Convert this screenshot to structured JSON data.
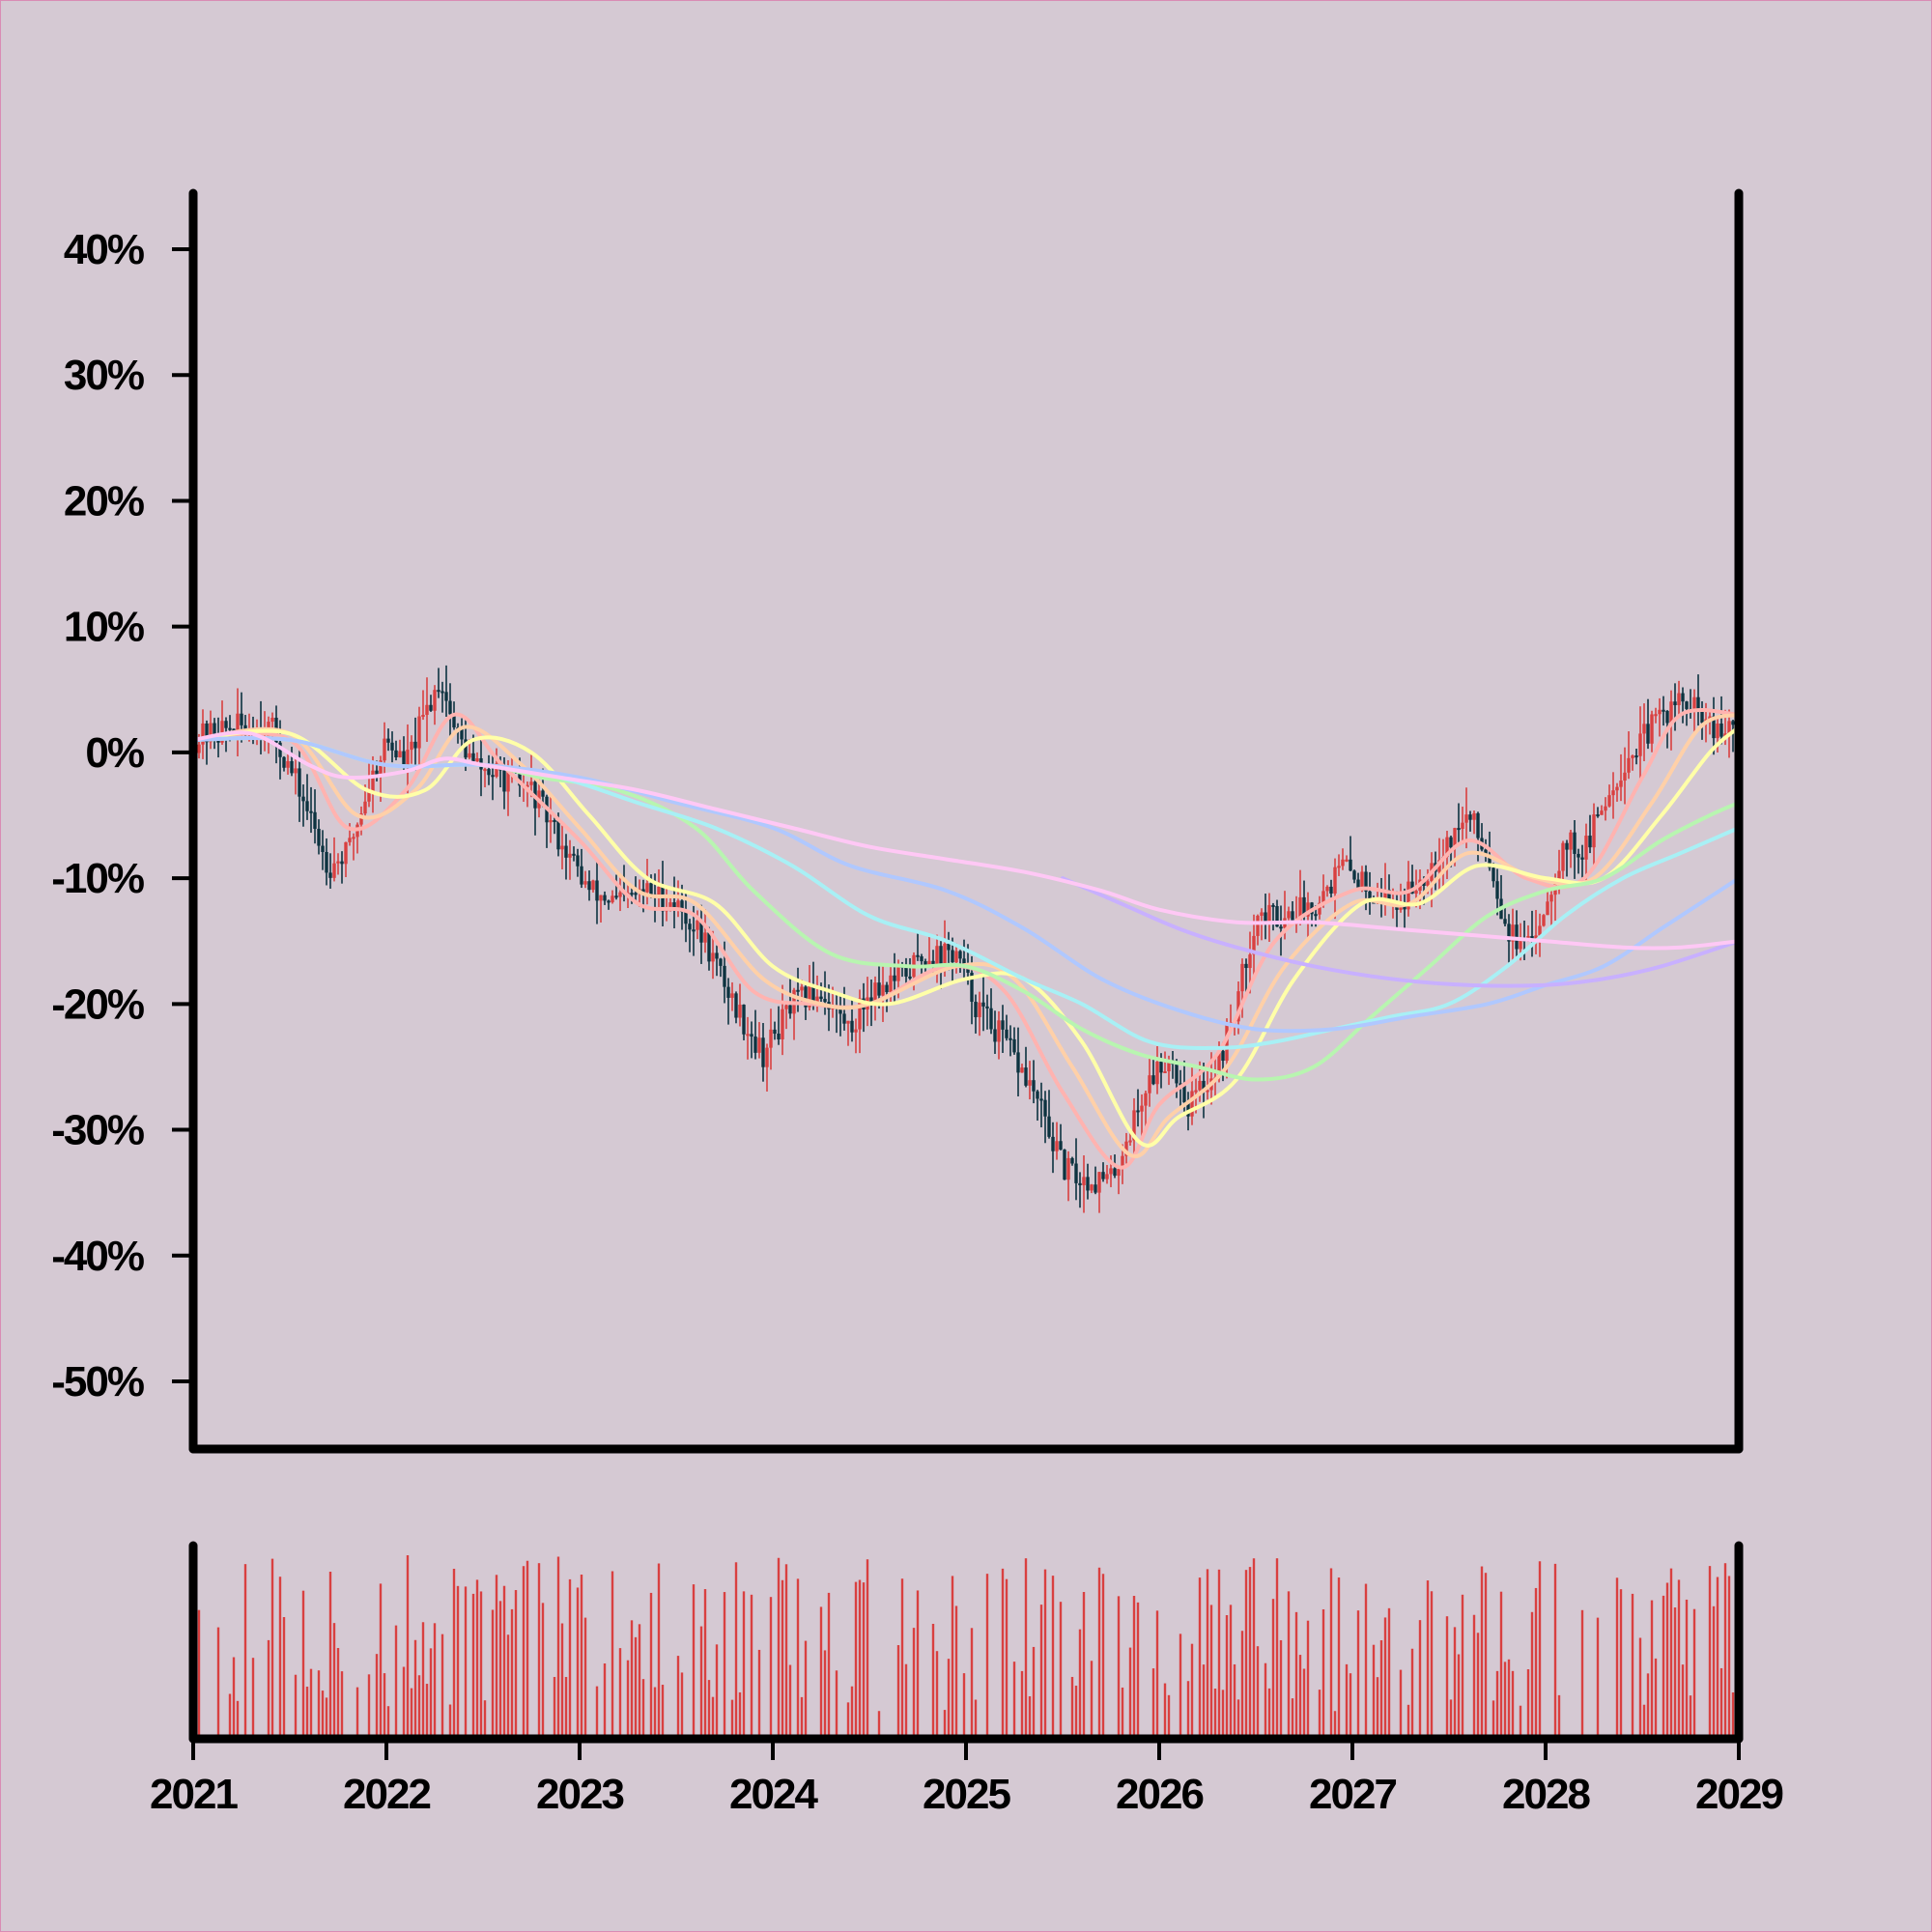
{
  "chart_data": {
    "type": "candlestick",
    "title": "",
    "xlabel": "",
    "ylabel": "",
    "x_range": [
      "2021",
      "2029"
    ],
    "y_range_percent": [
      -55,
      45
    ],
    "y_ticks": [
      "40%",
      "30%",
      "20%",
      "10%",
      "0%",
      "-10%",
      "-20%",
      "-30%",
      "-40%",
      "-50%"
    ],
    "y_tick_values": [
      40,
      30,
      20,
      10,
      0,
      -10,
      -20,
      -30,
      -40,
      -50
    ],
    "x_ticks": [
      "2021",
      "2022",
      "2023",
      "2024",
      "2025",
      "2026",
      "2027",
      "2028",
      "2029"
    ],
    "price_path": {
      "description_units": "percent change, approximate weekly closes sampled at year fractions",
      "points": [
        [
          2021.0,
          1
        ],
        [
          2021.2,
          2
        ],
        [
          2021.4,
          2
        ],
        [
          2021.55,
          -3
        ],
        [
          2021.7,
          -9
        ],
        [
          2021.8,
          -8
        ],
        [
          2021.9,
          -3
        ],
        [
          2022.0,
          1
        ],
        [
          2022.1,
          -1
        ],
        [
          2022.2,
          3
        ],
        [
          2022.28,
          6
        ],
        [
          2022.35,
          2
        ],
        [
          2022.45,
          -1
        ],
        [
          2022.6,
          -2
        ],
        [
          2022.75,
          -3
        ],
        [
          2022.9,
          -7
        ],
        [
          2023.05,
          -11
        ],
        [
          2023.2,
          -12
        ],
        [
          2023.35,
          -11
        ],
        [
          2023.5,
          -12
        ],
        [
          2023.65,
          -15
        ],
        [
          2023.8,
          -20
        ],
        [
          2023.95,
          -24
        ],
        [
          2024.1,
          -20
        ],
        [
          2024.25,
          -19
        ],
        [
          2024.4,
          -22
        ],
        [
          2024.5,
          -19
        ],
        [
          2024.65,
          -18
        ],
        [
          2024.8,
          -16
        ],
        [
          2024.95,
          -16
        ],
        [
          2025.05,
          -20
        ],
        [
          2025.2,
          -23
        ],
        [
          2025.35,
          -27
        ],
        [
          2025.5,
          -33
        ],
        [
          2025.6,
          -34
        ],
        [
          2025.75,
          -34
        ],
        [
          2025.85,
          -30
        ],
        [
          2025.95,
          -26
        ],
        [
          2026.05,
          -24
        ],
        [
          2026.15,
          -28
        ],
        [
          2026.3,
          -25
        ],
        [
          2026.4,
          -20
        ],
        [
          2026.5,
          -13
        ],
        [
          2026.65,
          -13
        ],
        [
          2026.8,
          -12
        ],
        [
          2026.95,
          -9
        ],
        [
          2027.1,
          -11
        ],
        [
          2027.25,
          -12
        ],
        [
          2027.35,
          -10
        ],
        [
          2027.5,
          -7
        ],
        [
          2027.6,
          -5
        ],
        [
          2027.7,
          -8
        ],
        [
          2027.8,
          -14
        ],
        [
          2027.9,
          -16
        ],
        [
          2028.0,
          -12
        ],
        [
          2028.1,
          -7
        ],
        [
          2028.2,
          -8
        ],
        [
          2028.3,
          -4
        ],
        [
          2028.4,
          -1
        ],
        [
          2028.5,
          1
        ],
        [
          2028.6,
          3
        ],
        [
          2028.7,
          4
        ],
        [
          2028.8,
          3
        ],
        [
          2028.9,
          1
        ],
        [
          2029.0,
          3
        ]
      ]
    },
    "moving_averages": [
      {
        "color": "#ffb3b0",
        "points": [
          [
            2021,
            1
          ],
          [
            2021.5,
            1
          ],
          [
            2021.8,
            -6
          ],
          [
            2022.1,
            -3
          ],
          [
            2022.35,
            3
          ],
          [
            2022.6,
            -1
          ],
          [
            2023.0,
            -7
          ],
          [
            2023.3,
            -12
          ],
          [
            2023.6,
            -13
          ],
          [
            2023.9,
            -19
          ],
          [
            2024.2,
            -20
          ],
          [
            2024.5,
            -20
          ],
          [
            2024.9,
            -17
          ],
          [
            2025.2,
            -19
          ],
          [
            2025.5,
            -27
          ],
          [
            2025.8,
            -33
          ],
          [
            2026.0,
            -28
          ],
          [
            2026.3,
            -24
          ],
          [
            2026.6,
            -15
          ],
          [
            2027.0,
            -11
          ],
          [
            2027.3,
            -11
          ],
          [
            2027.6,
            -7
          ],
          [
            2027.9,
            -10
          ],
          [
            2028.2,
            -10
          ],
          [
            2028.5,
            -2
          ],
          [
            2028.7,
            3
          ],
          [
            2029.0,
            3
          ]
        ]
      },
      {
        "color": "#ffd0a8",
        "points": [
          [
            2021,
            1
          ],
          [
            2021.5,
            1.5
          ],
          [
            2021.85,
            -5
          ],
          [
            2022.15,
            -3
          ],
          [
            2022.4,
            2
          ],
          [
            2022.7,
            -1
          ],
          [
            2023.0,
            -6
          ],
          [
            2023.3,
            -11
          ],
          [
            2023.6,
            -12
          ],
          [
            2023.95,
            -18
          ],
          [
            2024.25,
            -20
          ],
          [
            2024.5,
            -20
          ],
          [
            2024.95,
            -17
          ],
          [
            2025.25,
            -18
          ],
          [
            2025.55,
            -25
          ],
          [
            2025.85,
            -32
          ],
          [
            2026.05,
            -29
          ],
          [
            2026.35,
            -25
          ],
          [
            2026.65,
            -17
          ],
          [
            2027.0,
            -12
          ],
          [
            2027.3,
            -12
          ],
          [
            2027.6,
            -8
          ],
          [
            2027.95,
            -10
          ],
          [
            2028.25,
            -10
          ],
          [
            2028.55,
            -4
          ],
          [
            2028.8,
            2
          ],
          [
            2029.0,
            3
          ]
        ]
      },
      {
        "color": "#ffffa8",
        "points": [
          [
            2021,
            1
          ],
          [
            2021.5,
            1.5
          ],
          [
            2021.9,
            -3
          ],
          [
            2022.2,
            -3
          ],
          [
            2022.45,
            1
          ],
          [
            2022.75,
            0
          ],
          [
            2023.05,
            -5
          ],
          [
            2023.35,
            -10
          ],
          [
            2023.7,
            -12
          ],
          [
            2024.0,
            -17
          ],
          [
            2024.3,
            -19
          ],
          [
            2024.6,
            -20
          ],
          [
            2025.0,
            -18
          ],
          [
            2025.3,
            -18
          ],
          [
            2025.6,
            -23
          ],
          [
            2025.9,
            -31
          ],
          [
            2026.1,
            -29
          ],
          [
            2026.4,
            -26
          ],
          [
            2026.7,
            -18
          ],
          [
            2027.05,
            -12
          ],
          [
            2027.35,
            -12
          ],
          [
            2027.65,
            -9
          ],
          [
            2028.0,
            -10
          ],
          [
            2028.3,
            -10
          ],
          [
            2028.6,
            -5
          ],
          [
            2028.85,
            0
          ],
          [
            2029.0,
            2
          ]
        ]
      },
      {
        "color": "#b8f5b0",
        "points": [
          [
            2021,
            1
          ],
          [
            2021.5,
            1
          ],
          [
            2022.0,
            -1
          ],
          [
            2022.5,
            -1
          ],
          [
            2022.8,
            -2
          ],
          [
            2023.2,
            -3
          ],
          [
            2023.6,
            -6
          ],
          [
            2023.9,
            -11
          ],
          [
            2024.3,
            -16
          ],
          [
            2024.7,
            -17
          ],
          [
            2025.0,
            -17
          ],
          [
            2025.3,
            -19
          ],
          [
            2025.6,
            -22
          ],
          [
            2025.9,
            -24
          ],
          [
            2026.2,
            -25
          ],
          [
            2026.5,
            -26
          ],
          [
            2026.8,
            -25
          ],
          [
            2027.1,
            -21
          ],
          [
            2027.4,
            -17
          ],
          [
            2027.7,
            -13
          ],
          [
            2028.0,
            -11
          ],
          [
            2028.3,
            -10
          ],
          [
            2028.6,
            -7
          ],
          [
            2028.85,
            -5
          ],
          [
            2029.0,
            -4
          ]
        ]
      },
      {
        "color": "#a8f0f5",
        "points": [
          [
            2021,
            1
          ],
          [
            2021.5,
            1
          ],
          [
            2022.0,
            -1
          ],
          [
            2022.5,
            -1
          ],
          [
            2022.9,
            -2
          ],
          [
            2023.3,
            -4
          ],
          [
            2023.7,
            -6
          ],
          [
            2024.1,
            -9
          ],
          [
            2024.5,
            -13
          ],
          [
            2024.9,
            -15
          ],
          [
            2025.3,
            -18
          ],
          [
            2025.6,
            -20
          ],
          [
            2025.95,
            -23
          ],
          [
            2026.3,
            -23.5
          ],
          [
            2026.6,
            -23
          ],
          [
            2026.9,
            -22
          ],
          [
            2027.2,
            -21
          ],
          [
            2027.5,
            -20
          ],
          [
            2027.8,
            -17
          ],
          [
            2028.1,
            -13
          ],
          [
            2028.4,
            -10
          ],
          [
            2028.7,
            -8
          ],
          [
            2029.0,
            -6
          ]
        ]
      },
      {
        "color": "#b0c8ff",
        "points": [
          [
            2021,
            1
          ],
          [
            2021.5,
            1
          ],
          [
            2022.0,
            -1
          ],
          [
            2022.5,
            -1
          ],
          [
            2023.0,
            -2
          ],
          [
            2023.5,
            -4
          ],
          [
            2024.0,
            -6
          ],
          [
            2024.4,
            -9
          ],
          [
            2024.9,
            -11
          ],
          [
            2025.3,
            -14
          ],
          [
            2025.7,
            -18
          ],
          [
            2026.1,
            -20.5
          ],
          [
            2026.5,
            -22
          ],
          [
            2026.9,
            -22
          ],
          [
            2027.3,
            -21
          ],
          [
            2027.7,
            -20
          ],
          [
            2028.0,
            -18.5
          ],
          [
            2028.3,
            -17
          ],
          [
            2028.6,
            -14
          ],
          [
            2028.8,
            -12
          ],
          [
            2029.0,
            -10
          ]
        ]
      },
      {
        "color": "#c8b0ff",
        "points": [
          [
            2025.5,
            -10
          ],
          [
            2025.8,
            -12
          ],
          [
            2026.1,
            -14
          ],
          [
            2026.4,
            -15.5
          ],
          [
            2026.8,
            -17
          ],
          [
            2027.2,
            -18
          ],
          [
            2027.6,
            -18.5
          ],
          [
            2028.0,
            -18.5
          ],
          [
            2028.3,
            -18
          ],
          [
            2028.6,
            -17
          ],
          [
            2029.0,
            -15
          ]
        ]
      },
      {
        "color": "#ffc8f5",
        "points": [
          [
            2021,
            1
          ],
          [
            2021.3,
            1.5
          ],
          [
            2021.6,
            -1
          ],
          [
            2021.8,
            -2
          ],
          [
            2022.1,
            -1.5
          ],
          [
            2022.3,
            -0.5
          ],
          [
            2022.5,
            -1
          ],
          [
            2022.9,
            -2
          ],
          [
            2023.3,
            -3
          ],
          [
            2023.7,
            -4.5
          ],
          [
            2024.1,
            -6
          ],
          [
            2024.5,
            -7.5
          ],
          [
            2024.9,
            -8.5
          ],
          [
            2025.3,
            -9.5
          ],
          [
            2025.7,
            -11
          ],
          [
            2026.0,
            -12.5
          ],
          [
            2026.4,
            -13.5
          ],
          [
            2026.8,
            -13.5
          ],
          [
            2027.2,
            -14
          ],
          [
            2027.6,
            -14.5
          ],
          [
            2028.0,
            -15
          ],
          [
            2028.4,
            -15.5
          ],
          [
            2028.7,
            -15.5
          ],
          [
            2029.0,
            -15
          ]
        ]
      }
    ],
    "volume": {
      "color": "#d94040",
      "description": "weekly volume bars, relative heights 0-1",
      "seed": 42
    },
    "colors": {
      "up": "#d94040",
      "down": "#0d3340",
      "axis": "#000000",
      "background": "#d5c9d3"
    }
  }
}
